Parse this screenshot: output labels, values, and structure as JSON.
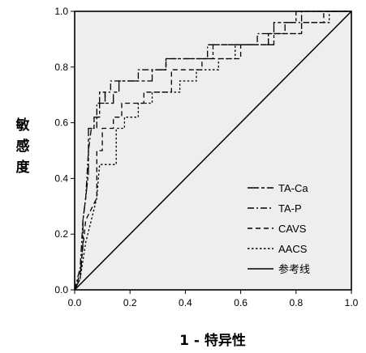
{
  "chart_data": {
    "type": "line",
    "xlabel": "1 - 特异性",
    "ylabel": "敏感度",
    "xlim": [
      0.0,
      1.0
    ],
    "ylim": [
      0.0,
      1.0
    ],
    "x_ticks": [
      "0.0",
      "0.2",
      "0.4",
      "0.6",
      "0.8",
      "1.0"
    ],
    "y_ticks": [
      "0.0",
      "0.2",
      "0.4",
      "0.6",
      "0.8",
      "1.0"
    ],
    "grid": false,
    "plot_background": "#eeeeee",
    "legend_position": "bottom-right",
    "series": [
      {
        "name": "TA-Ca",
        "dash": "long-short",
        "points": [
          [
            0,
            0
          ],
          [
            0.02,
            0.04
          ],
          [
            0.03,
            0.17
          ],
          [
            0.03,
            0.25
          ],
          [
            0.04,
            0.33
          ],
          [
            0.05,
            0.42
          ],
          [
            0.05,
            0.58
          ],
          [
            0.07,
            0.58
          ],
          [
            0.07,
            0.62
          ],
          [
            0.09,
            0.62
          ],
          [
            0.09,
            0.71
          ],
          [
            0.11,
            0.71
          ],
          [
            0.11,
            0.67
          ],
          [
            0.14,
            0.67
          ],
          [
            0.14,
            0.71
          ],
          [
            0.16,
            0.71
          ],
          [
            0.16,
            0.75
          ],
          [
            0.28,
            0.75
          ],
          [
            0.28,
            0.79
          ],
          [
            0.33,
            0.79
          ],
          [
            0.33,
            0.83
          ],
          [
            0.5,
            0.83
          ],
          [
            0.5,
            0.88
          ],
          [
            0.72,
            0.88
          ],
          [
            0.72,
            0.96
          ],
          [
            0.8,
            0.96
          ],
          [
            0.8,
            1.0
          ],
          [
            1.0,
            1.0
          ]
        ]
      },
      {
        "name": "TA-P",
        "dash": "dash-dot",
        "points": [
          [
            0,
            0
          ],
          [
            0.02,
            0.08
          ],
          [
            0.03,
            0.25
          ],
          [
            0.04,
            0.33
          ],
          [
            0.05,
            0.5
          ],
          [
            0.06,
            0.58
          ],
          [
            0.08,
            0.58
          ],
          [
            0.08,
            0.67
          ],
          [
            0.11,
            0.67
          ],
          [
            0.11,
            0.71
          ],
          [
            0.13,
            0.71
          ],
          [
            0.13,
            0.75
          ],
          [
            0.23,
            0.75
          ],
          [
            0.23,
            0.79
          ],
          [
            0.33,
            0.79
          ],
          [
            0.33,
            0.83
          ],
          [
            0.48,
            0.83
          ],
          [
            0.48,
            0.88
          ],
          [
            0.66,
            0.88
          ],
          [
            0.66,
            0.92
          ],
          [
            0.76,
            0.92
          ],
          [
            0.76,
            0.96
          ],
          [
            0.82,
            0.96
          ],
          [
            0.82,
            1.0
          ],
          [
            1.0,
            1.0
          ]
        ]
      },
      {
        "name": "CAVS",
        "dash": "dashed",
        "points": [
          [
            0,
            0
          ],
          [
            0.02,
            0.06
          ],
          [
            0.04,
            0.25
          ],
          [
            0.06,
            0.29
          ],
          [
            0.08,
            0.33
          ],
          [
            0.08,
            0.5
          ],
          [
            0.1,
            0.5
          ],
          [
            0.1,
            0.58
          ],
          [
            0.14,
            0.58
          ],
          [
            0.14,
            0.62
          ],
          [
            0.17,
            0.62
          ],
          [
            0.17,
            0.67
          ],
          [
            0.25,
            0.67
          ],
          [
            0.25,
            0.71
          ],
          [
            0.35,
            0.71
          ],
          [
            0.35,
            0.79
          ],
          [
            0.46,
            0.79
          ],
          [
            0.46,
            0.83
          ],
          [
            0.6,
            0.83
          ],
          [
            0.6,
            0.88
          ],
          [
            0.7,
            0.88
          ],
          [
            0.7,
            0.92
          ],
          [
            0.82,
            0.92
          ],
          [
            0.82,
            0.96
          ],
          [
            0.9,
            0.96
          ],
          [
            0.9,
            1.0
          ],
          [
            1.0,
            1.0
          ]
        ]
      },
      {
        "name": "AACS",
        "dash": "dotted",
        "points": [
          [
            0,
            0
          ],
          [
            0.02,
            0.04
          ],
          [
            0.04,
            0.17
          ],
          [
            0.06,
            0.25
          ],
          [
            0.08,
            0.33
          ],
          [
            0.09,
            0.45
          ],
          [
            0.15,
            0.45
          ],
          [
            0.15,
            0.58
          ],
          [
            0.18,
            0.58
          ],
          [
            0.18,
            0.62
          ],
          [
            0.23,
            0.62
          ],
          [
            0.23,
            0.67
          ],
          [
            0.28,
            0.67
          ],
          [
            0.28,
            0.71
          ],
          [
            0.38,
            0.71
          ],
          [
            0.38,
            0.75
          ],
          [
            0.44,
            0.75
          ],
          [
            0.44,
            0.79
          ],
          [
            0.52,
            0.79
          ],
          [
            0.52,
            0.83
          ],
          [
            0.58,
            0.83
          ],
          [
            0.58,
            0.88
          ],
          [
            0.7,
            0.88
          ],
          [
            0.7,
            0.92
          ],
          [
            0.82,
            0.92
          ],
          [
            0.82,
            0.96
          ],
          [
            0.92,
            0.96
          ],
          [
            0.92,
            1.0
          ],
          [
            1.0,
            1.0
          ]
        ]
      },
      {
        "name": "参考线",
        "dash": "solid",
        "points": [
          [
            0,
            0
          ],
          [
            1,
            1
          ]
        ]
      }
    ]
  }
}
